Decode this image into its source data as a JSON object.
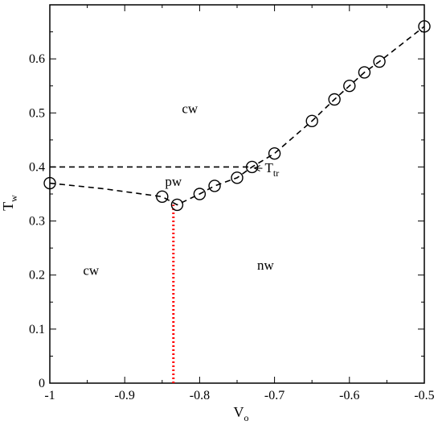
{
  "chart_data": {
    "type": "scatter",
    "xlabel": "V",
    "xlabel_sub": "o",
    "ylabel": "T",
    "ylabel_sub": "w",
    "xlim": [
      -1,
      -0.5
    ],
    "ylim": [
      0,
      0.7
    ],
    "x_ticks": [
      -1,
      -0.9,
      -0.8,
      -0.7,
      -0.6,
      -0.5
    ],
    "x_tick_labels": [
      "-1",
      "-0.9",
      "-0.8",
      "-0.7",
      "-0.6",
      "-0.5"
    ],
    "y_ticks": [
      0,
      0.1,
      0.2,
      0.3,
      0.4,
      0.5,
      0.6
    ],
    "y_tick_labels": [
      "0",
      "0.1",
      "0.2",
      "0.3",
      "0.4",
      "0.5",
      "0.6"
    ],
    "grid": false,
    "series": [
      {
        "style": "dashed-line-circles",
        "points": [
          {
            "x": -1.0,
            "y": 0.37,
            "marker": true
          },
          {
            "x": -0.93,
            "y": 0.36,
            "marker": false
          },
          {
            "x": -0.85,
            "y": 0.345,
            "marker": true
          },
          {
            "x": -0.83,
            "y": 0.33,
            "marker": true
          },
          {
            "x": -0.8,
            "y": 0.35,
            "marker": true
          },
          {
            "x": -0.78,
            "y": 0.365,
            "marker": true
          },
          {
            "x": -0.75,
            "y": 0.38,
            "marker": true
          },
          {
            "x": -0.73,
            "y": 0.4,
            "marker": true
          },
          {
            "x": -0.7,
            "y": 0.425,
            "marker": true
          },
          {
            "x": -0.65,
            "y": 0.485,
            "marker": true
          },
          {
            "x": -0.62,
            "y": 0.525,
            "marker": true
          },
          {
            "x": -0.6,
            "y": 0.55,
            "marker": true
          },
          {
            "x": -0.58,
            "y": 0.575,
            "marker": true
          },
          {
            "x": -0.56,
            "y": 0.595,
            "marker": true
          },
          {
            "x": -0.5,
            "y": 0.66,
            "marker": true
          }
        ]
      }
    ],
    "reference_lines": [
      {
        "orientation": "horizontal",
        "y": 0.4,
        "x_from": -1.0,
        "x_to": -0.73,
        "style": "dashed",
        "color": "#000000"
      },
      {
        "orientation": "vertical",
        "x": -0.835,
        "y_from": 0.0,
        "y_to": 0.33,
        "style": "dotted",
        "color": "#ff0000"
      }
    ],
    "annotations": [
      {
        "id": "ttr",
        "text": "T",
        "sub": "tr",
        "x": -0.713,
        "y": 0.39,
        "arrow_to": {
          "x": -0.727,
          "y": 0.398
        }
      },
      {
        "id": "cw-top",
        "text": "cw",
        "x": -0.813,
        "y": 0.5
      },
      {
        "id": "pw",
        "text": "pw",
        "x": -0.835,
        "y": 0.365
      },
      {
        "id": "cw-bottom",
        "text": "cw",
        "x": -0.945,
        "y": 0.2
      },
      {
        "id": "nw",
        "text": "nw",
        "x": -0.712,
        "y": 0.21
      }
    ],
    "colors": {
      "line": "#000000",
      "marker": "#000000",
      "vertical_dotted": "#ff0000"
    }
  }
}
